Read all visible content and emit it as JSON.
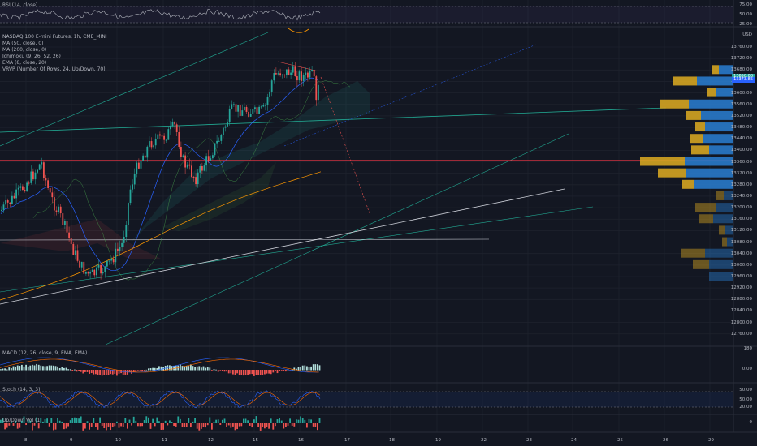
{
  "chart": {
    "title": "NASDAQ 100 E-mini Futures, 1h, CME_MINI",
    "indicators": [
      "MA (50, close, 0)",
      "MA (200, close, 0)",
      "Ichimoku (9, 26, 52, 26)",
      "EMA (8, close, 20)",
      "VRVP (Number Of Rows, 24, Up/Down, 70)"
    ],
    "currency": "USD",
    "last_price": "13650.00",
    "current_price": "13373.85"
  },
  "rsi": {
    "label": "RSI (14, close)",
    "ticks": [
      "75.00",
      "50.00",
      "25.00"
    ]
  },
  "macd": {
    "label": "MACD (12, 26, close, 9, EMA, EMA)",
    "ticks": [
      "180",
      "0.00"
    ]
  },
  "stoch": {
    "label": "Stoch (14, 3, 3)",
    "ticks": [
      "50.00",
      "20.00"
    ]
  },
  "vol": {
    "label": "Up/Down Vol (1)",
    "ticks": [
      "0"
    ]
  },
  "price_axis": [
    "13760.00",
    "13720.00",
    "13680.00",
    "13640.00",
    "13600.00",
    "13560.00",
    "13520.00",
    "13480.00",
    "13440.00",
    "13400.00",
    "13360.00",
    "13320.00",
    "13280.00",
    "13240.00",
    "13200.00",
    "13160.00",
    "13120.00",
    "13080.00",
    "13040.00",
    "13000.00",
    "12960.00",
    "12920.00",
    "12880.00",
    "12840.00",
    "12800.00",
    "12760.00"
  ],
  "date_axis": [
    "8",
    "9",
    "10",
    "11",
    "12",
    "15",
    "16",
    "17",
    "18",
    "19",
    "22",
    "23",
    "24",
    "25",
    "26",
    "29"
  ],
  "colors": {
    "up": "#26a69a",
    "down": "#ef5350",
    "vp_up": "#2979c9",
    "vp_down": "#d4a421",
    "hline": "#f23645"
  },
  "chart_data": {
    "type": "candlestick",
    "symbol": "NASDAQ 100 E-mini Futures",
    "interval": "1h",
    "price_range": [
      12760,
      13760
    ],
    "horizontal_line": 13374,
    "volume_profile": {
      "rows": 24,
      "up_down": "Up/Down",
      "price_levels": [
        13680,
        13640,
        13600,
        13560,
        13520,
        13480,
        13440,
        13400,
        13360,
        13320,
        13280,
        13240,
        13200,
        13160,
        13120,
        13080,
        13040,
        13000
      ]
    }
  }
}
